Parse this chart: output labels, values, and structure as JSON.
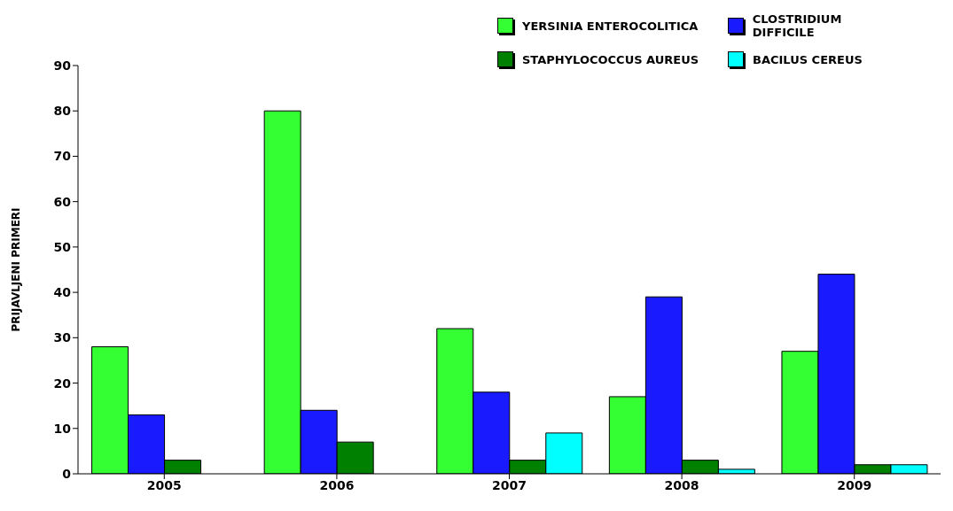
{
  "chart_data": {
    "type": "bar",
    "ylabel": "PRIJAVLJENI PRIMERI",
    "categories": [
      "2005",
      "2006",
      "2007",
      "2008",
      "2009"
    ],
    "series": [
      {
        "name": "YERSINIA ENTEROCOLITICA",
        "color": "#33ff33",
        "values": [
          28,
          80,
          32,
          17,
          27
        ]
      },
      {
        "name": "CLOSTRIDIUM DIFFICILE",
        "color": "#1a1aff",
        "values": [
          13,
          14,
          18,
          39,
          44
        ]
      },
      {
        "name": "STAPHYLOCOCCUS AUREUS",
        "color": "#008000",
        "values": [
          3,
          7,
          3,
          3,
          2
        ]
      },
      {
        "name": "BACILUS CEREUS",
        "color": "#00ffff",
        "values": [
          null,
          null,
          9,
          1,
          2
        ]
      }
    ],
    "ylim": [
      0,
      90
    ],
    "yticks": [
      0,
      10,
      20,
      30,
      40,
      50,
      60,
      70,
      80,
      90
    ],
    "grid": false,
    "legend": "top right"
  }
}
